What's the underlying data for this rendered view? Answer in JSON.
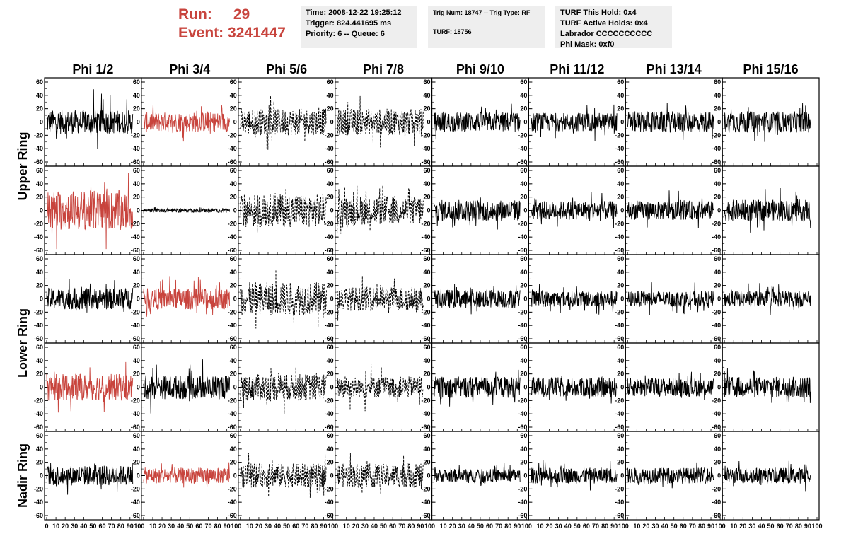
{
  "header": {
    "run_label": "Run:",
    "run_value": "29",
    "event_label": "Event:",
    "event_value": "3241447"
  },
  "time_box": {
    "time": "Time: 2008-12-22 19:25:12",
    "trigger": "Trigger: 824.441695 ms",
    "priority": "Priority: 6 -- Queue: 6"
  },
  "trig_box": {
    "trig": "Trig Num: 18747 -- Trig Type: RF",
    "turf": "TURF: 18756"
  },
  "turf_box": {
    "hold": "TURF This Hold: 0x4",
    "active": "TURF Active Holds: 0x4",
    "labrador": "Labrador CCCCCCCCCC",
    "phimask": "Phi Mask: 0xf0"
  },
  "colors": {
    "red_trace": "#c8443d",
    "black_trace": "#000000",
    "info_bg": "#eeeeee"
  },
  "chart_data": {
    "type": "line",
    "title": "",
    "columns": [
      "Phi 1/2",
      "Phi 3/4",
      "Phi 5/6",
      "Phi 7/8",
      "Phi 9/10",
      "Phi 11/12",
      "Phi 13/14",
      "Phi 15/16"
    ],
    "row_labels": [
      {
        "text": "Upper Ring",
        "rows": [
          0,
          1
        ]
      },
      {
        "text": "Lower Ring",
        "rows": [
          2,
          3
        ]
      },
      {
        "text": "Nadir Ring",
        "rows": [
          4
        ]
      }
    ],
    "xlim": [
      0,
      100
    ],
    "ylim": [
      -60,
      60
    ],
    "y_ticks": [
      60,
      40,
      20,
      0,
      -20,
      -40,
      -60
    ],
    "x_tick_labels_first": [
      "0",
      "10",
      "20",
      "30",
      "40",
      "50",
      "60",
      "70",
      "80",
      "90",
      "100"
    ],
    "x_tick_labels_other": [
      "10",
      "20",
      "30",
      "40",
      "50",
      "60",
      "70",
      "80",
      "90",
      "100"
    ],
    "x_data_range": [
      0,
      93
    ],
    "y_ticks_on_left_of_first_panel_only": true,
    "grid": false,
    "panels": [
      [
        {
          "color": "black",
          "style": "solid",
          "amplitude": 18,
          "spike": 50
        },
        {
          "color": "red",
          "style": "solid",
          "amplitude": 15,
          "spike": 30
        },
        {
          "color": "black",
          "style": "dashed",
          "amplitude": 20,
          "spike": 45
        },
        {
          "color": "black",
          "style": "dashed",
          "amplitude": 20,
          "spike": 40
        },
        {
          "color": "black",
          "style": "solid",
          "amplitude": 15,
          "spike": 30
        },
        {
          "color": "black",
          "style": "solid",
          "amplitude": 14,
          "spike": 30
        },
        {
          "color": "black",
          "style": "solid",
          "amplitude": 16,
          "spike": 30
        },
        {
          "color": "black",
          "style": "solid",
          "amplitude": 16,
          "spike": 30
        }
      ],
      [
        {
          "color": "red",
          "style": "solid",
          "amplitude": 30,
          "spike": 60
        },
        {
          "color": "black",
          "style": "solid",
          "amplitude": 3,
          "spike": 5
        },
        {
          "color": "black",
          "style": "dashed",
          "amplitude": 25,
          "spike": 45
        },
        {
          "color": "black",
          "style": "dashed",
          "amplitude": 22,
          "spike": 40
        },
        {
          "color": "black",
          "style": "solid",
          "amplitude": 16,
          "spike": 30
        },
        {
          "color": "black",
          "style": "solid",
          "amplitude": 14,
          "spike": 30
        },
        {
          "color": "black",
          "style": "solid",
          "amplitude": 14,
          "spike": 30
        },
        {
          "color": "black",
          "style": "solid",
          "amplitude": 16,
          "spike": 35
        }
      ],
      [
        {
          "color": "black",
          "style": "solid",
          "amplitude": 16,
          "spike": 35
        },
        {
          "color": "red",
          "style": "solid",
          "amplitude": 16,
          "spike": 35
        },
        {
          "color": "black",
          "style": "dashed",
          "amplitude": 25,
          "spike": 50
        },
        {
          "color": "black",
          "style": "dashed",
          "amplitude": 18,
          "spike": 35
        },
        {
          "color": "black",
          "style": "solid",
          "amplitude": 14,
          "spike": 25
        },
        {
          "color": "black",
          "style": "solid",
          "amplitude": 12,
          "spike": 25
        },
        {
          "color": "black",
          "style": "solid",
          "amplitude": 12,
          "spike": 25
        },
        {
          "color": "black",
          "style": "solid",
          "amplitude": 12,
          "spike": 25
        }
      ],
      [
        {
          "color": "red",
          "style": "solid",
          "amplitude": 20,
          "spike": 38
        },
        {
          "color": "black",
          "style": "solid",
          "amplitude": 18,
          "spike": 42
        },
        {
          "color": "black",
          "style": "dashed",
          "amplitude": 20,
          "spike": 42
        },
        {
          "color": "black",
          "style": "dashed",
          "amplitude": 16,
          "spike": 40
        },
        {
          "color": "black",
          "style": "solid",
          "amplitude": 16,
          "spike": 30
        },
        {
          "color": "black",
          "style": "solid",
          "amplitude": 15,
          "spike": 25
        },
        {
          "color": "black",
          "style": "solid",
          "amplitude": 14,
          "spike": 25
        },
        {
          "color": "black",
          "style": "solid",
          "amplitude": 16,
          "spike": 30
        }
      ],
      [
        {
          "color": "black",
          "style": "solid",
          "amplitude": 15,
          "spike": 30
        },
        {
          "color": "red",
          "style": "solid",
          "amplitude": 12,
          "spike": 20
        },
        {
          "color": "black",
          "style": "dashed",
          "amplitude": 18,
          "spike": 35
        },
        {
          "color": "black",
          "style": "dashed",
          "amplitude": 18,
          "spike": 35
        },
        {
          "color": "black",
          "style": "solid",
          "amplitude": 10,
          "spike": 20
        },
        {
          "color": "black",
          "style": "solid",
          "amplitude": 12,
          "spike": 25
        },
        {
          "color": "black",
          "style": "solid",
          "amplitude": 12,
          "spike": 20
        },
        {
          "color": "black",
          "style": "solid",
          "amplitude": 12,
          "spike": 25
        }
      ]
    ]
  }
}
